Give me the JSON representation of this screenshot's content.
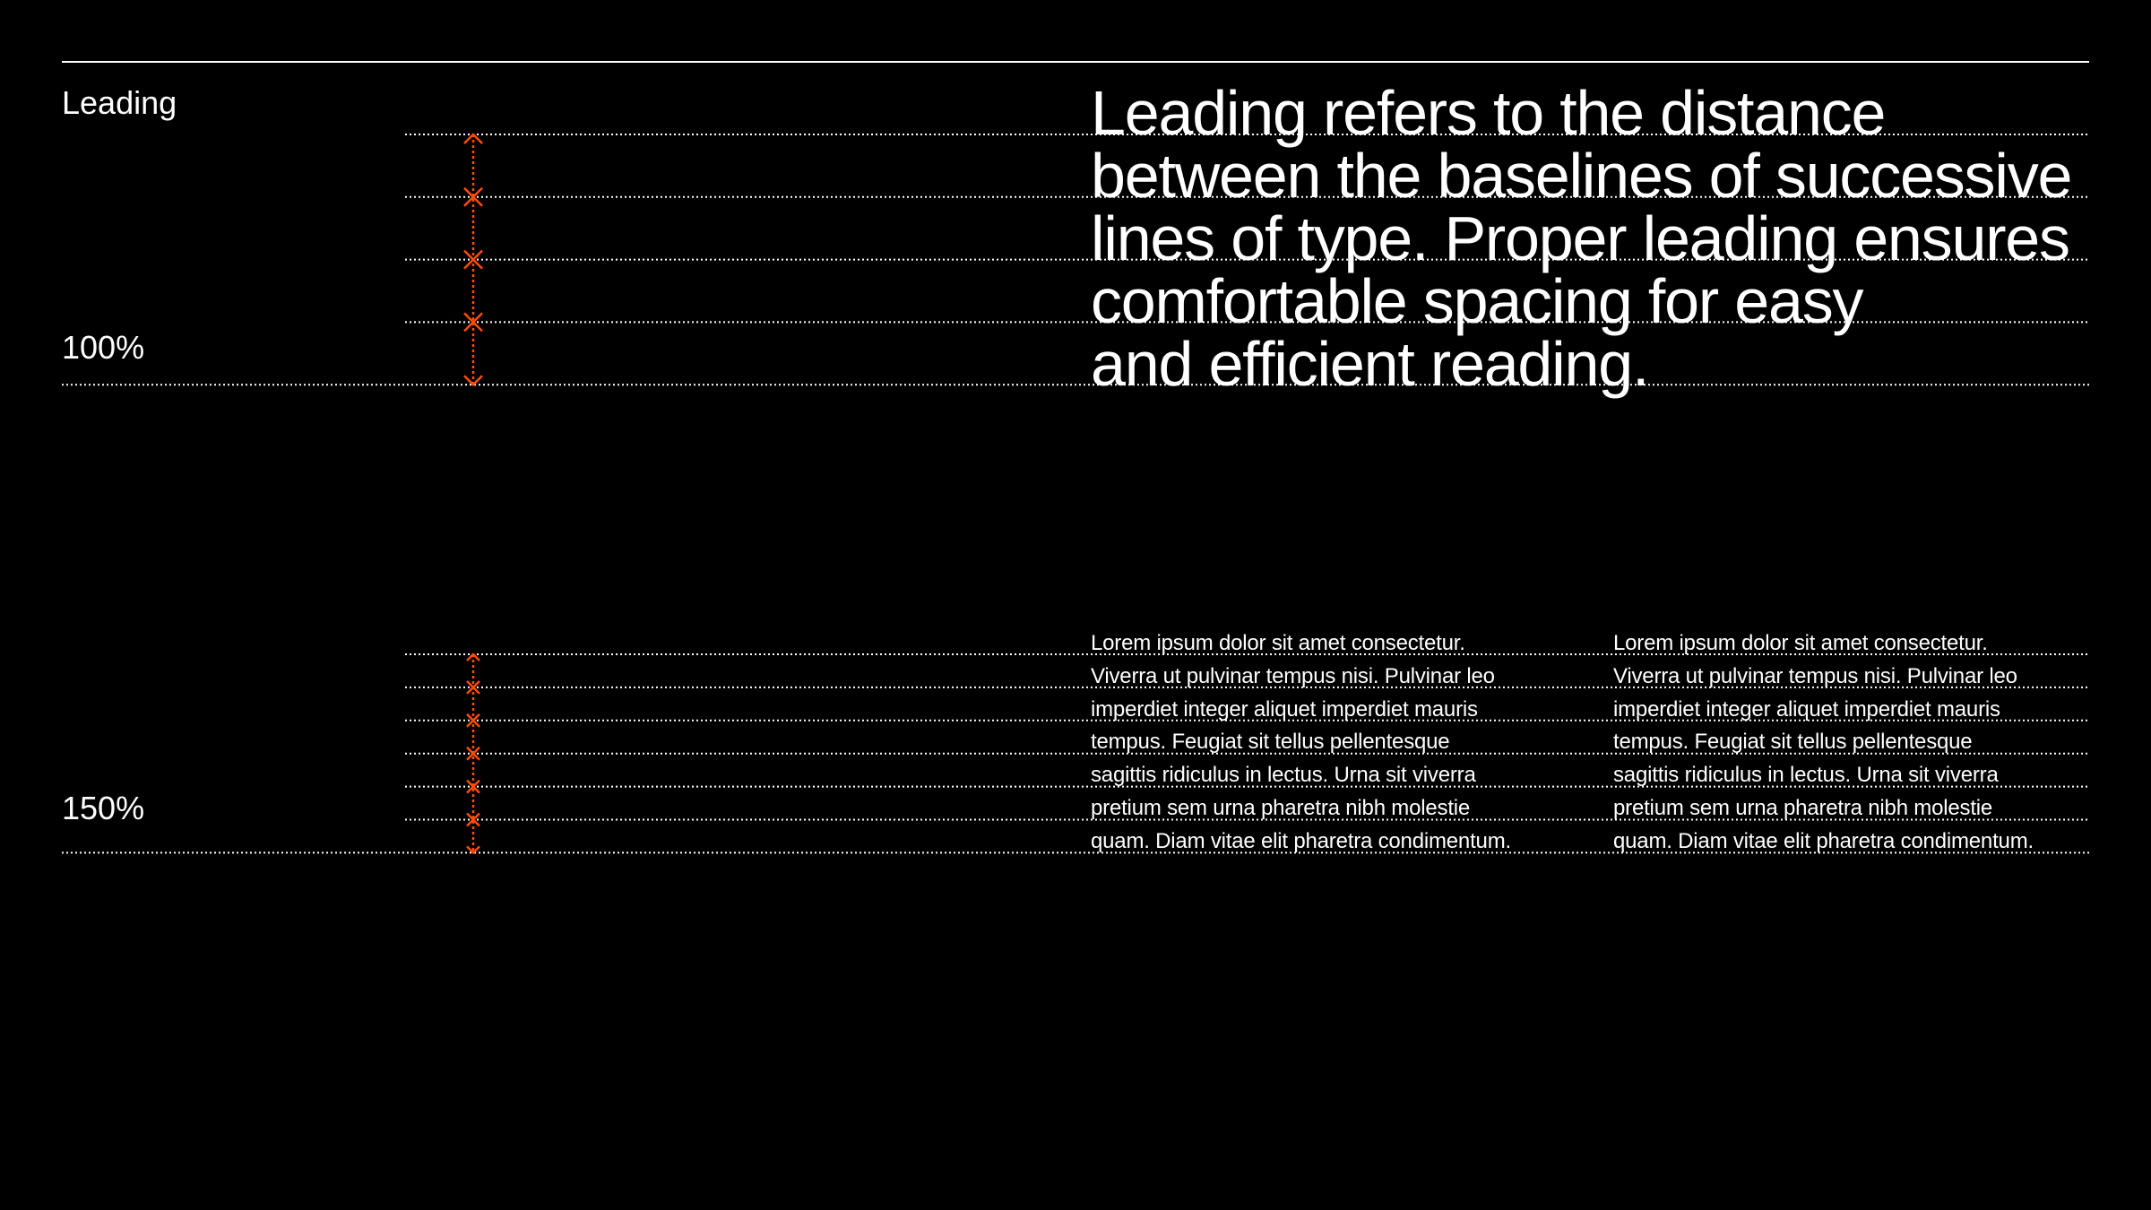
{
  "title": "Leading",
  "accent_color": "#ff4d00",
  "sections": [
    {
      "label": "100%",
      "leading_percent": 100,
      "columns": [
        [
          "Leading refers to the distance",
          "between the baselines of successive",
          "lines of type. Proper leading ensures",
          "comfortable spacing for easy",
          "and efficient reading."
        ]
      ]
    },
    {
      "label": "150%",
      "leading_percent": 150,
      "columns": [
        [
          "Lorem ipsum dolor sit amet consectetur.",
          "Viverra ut pulvinar tempus nisi. Pulvinar leo",
          "imperdiet integer aliquet imperdiet mauris",
          "tempus. Feugiat sit tellus pellentesque",
          "sagittis ridiculus in lectus. Urna sit viverra",
          "pretium sem urna pharetra nibh molestie",
          "quam. Diam vitae elit pharetra condimentum."
        ],
        [
          "Lorem ipsum dolor sit amet consectetur.",
          "Viverra ut pulvinar tempus nisi. Pulvinar leo",
          "imperdiet integer aliquet imperdiet mauris",
          "tempus. Feugiat sit tellus pellentesque",
          "sagittis ridiculus in lectus. Urna sit viverra",
          "pretium sem urna pharetra nibh molestie",
          "quam. Diam vitae elit pharetra condimentum."
        ]
      ]
    }
  ]
}
